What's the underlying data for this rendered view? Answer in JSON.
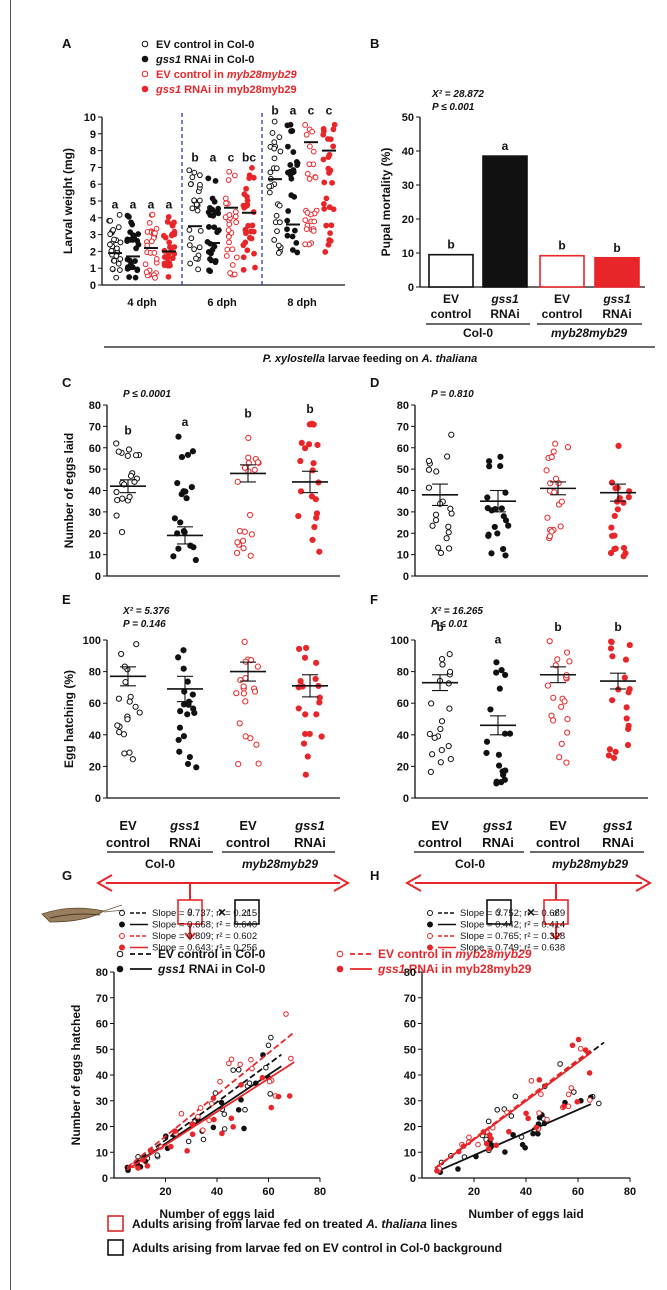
{
  "figure": {
    "panel_labels": [
      "A",
      "B",
      "C",
      "D",
      "E",
      "F",
      "G",
      "H"
    ],
    "feeding_label_italic_1": "P. xylostella",
    "feeding_label_mid": " larvae feeding on ",
    "feeding_label_italic_2": "A. thaliana",
    "genotype_col0": "Col-0",
    "genotype_myb": "myb28myb29",
    "tick_ev_1": "EV",
    "tick_ev_2": "control",
    "tick_gss_1": "gss1",
    "tick_gss_2": "RNAi",
    "cross_symbol": "×",
    "female_symbol": "♀",
    "male_symbol": "♂",
    "legend_A": [
      {
        "pre": "EV control in Col-0",
        "ital": "",
        "post": ""
      },
      {
        "pre": "",
        "ital": "gss1",
        "post": " RNAi in Col-0"
      },
      {
        "pre": "EV control in ",
        "ital": "myb28myb29",
        "post": ""
      },
      {
        "pre": "",
        "ital": "gss1",
        "post": " RNAi in myb28myb29"
      }
    ],
    "legend_G": [
      {
        "pre": "EV control in Col-0",
        "ital": "",
        "post": ""
      },
      {
        "pre": "",
        "ital": "gss1",
        "post": " RNAi in Col-0"
      },
      {
        "pre": "EV control in ",
        "ital": "myb28myb29",
        "post": ""
      },
      {
        "pre": "",
        "ital": "gss1",
        "post": " RNAi in myb28myb29"
      }
    ],
    "bottom_legend": [
      {
        "pre": "Adults arising from larvae fed on treated ",
        "ital": "A. thaliana",
        "post": " lines",
        "color": "#d42a2a"
      },
      {
        "pre": "Adults arising from larvae fed on EV control in Col-0 background",
        "ital": "",
        "post": "",
        "color": "#111111"
      }
    ],
    "colors": {
      "black": "#111111",
      "red": "#e8262a",
      "blue": "#2a3fa0"
    }
  },
  "chart_data": [
    {
      "panel": "A",
      "type": "scatter",
      "ylabel": "Larval weight (mg)",
      "ylim": [
        0,
        10
      ],
      "yticks": [
        "0",
        "1",
        "2",
        "3",
        "4",
        "5",
        "6",
        "7",
        "8",
        "9",
        "10"
      ],
      "categories": [
        "4 dph",
        "6 dph",
        "8 dph"
      ],
      "means": [
        [
          1.9,
          1.7,
          2.2,
          2.0
        ],
        [
          3.5,
          2.5,
          4.6,
          4.3
        ],
        [
          6.3,
          3.6,
          8.5,
          8.0
        ]
      ],
      "letters": [
        [
          "a",
          "a",
          "a",
          "a"
        ],
        [
          "b",
          "a",
          "c",
          "bc"
        ],
        [
          "b",
          "a",
          "c",
          "c"
        ]
      ],
      "spread": [
        [
          0.4,
          4.2
        ],
        [
          0.6,
          7.0
        ],
        [
          1.9,
          9.8
        ]
      ]
    },
    {
      "panel": "B",
      "type": "bar",
      "ylabel": "Pupal mortality (%)",
      "ylim": [
        0,
        50
      ],
      "yticks": [
        "0",
        "10",
        "20",
        "30",
        "40",
        "50"
      ],
      "values": [
        9.5,
        38.5,
        9.2,
        8.6
      ],
      "letters": [
        "b",
        "a",
        "b",
        "b"
      ],
      "stat_line_1": "X² = 28.872",
      "stat_line_2": "P ≤ 0.001"
    },
    {
      "panel": "C",
      "type": "scatter",
      "ylabel": "Number of eggs laid",
      "ylim": [
        0,
        80
      ],
      "yticks": [
        "0",
        "10",
        "20",
        "30",
        "40",
        "50",
        "60",
        "70",
        "80"
      ],
      "means": [
        42,
        19,
        48,
        44
      ],
      "sem": [
        3,
        4,
        4,
        5
      ],
      "letters": [
        "b",
        "a",
        "b",
        "b"
      ],
      "spread": [
        [
          18,
          62
        ],
        [
          5,
          66
        ],
        [
          9,
          70
        ],
        [
          10,
          72
        ]
      ],
      "stat_line_1": "P ≤ 0.0001"
    },
    {
      "panel": "D",
      "type": "scatter",
      "ylim": [
        0,
        80
      ],
      "yticks": [
        "0",
        "10",
        "20",
        "30",
        "40",
        "50",
        "60",
        "70",
        "80"
      ],
      "means": [
        38,
        35,
        41,
        39
      ],
      "sem": [
        5,
        5,
        3,
        4
      ],
      "spread": [
        [
          6,
          70
        ],
        [
          6,
          63
        ],
        [
          15,
          62
        ],
        [
          7,
          66
        ]
      ],
      "stat_line_1": "P = 0.810"
    },
    {
      "panel": "E",
      "type": "scatter",
      "ylabel": "Egg hatching (%)",
      "ylim": [
        0,
        100
      ],
      "yticks": [
        "0",
        "20",
        "40",
        "60",
        "80",
        "100"
      ],
      "means": [
        77,
        69,
        80,
        71
      ],
      "sem": [
        6,
        8,
        6,
        7
      ],
      "spread": [
        [
          24,
          100
        ],
        [
          16,
          100
        ],
        [
          20,
          100
        ],
        [
          13,
          100
        ]
      ],
      "stat_line_1": "X² = 5.376",
      "stat_line_2": "P = 0.146"
    },
    {
      "panel": "F",
      "type": "scatter",
      "ylim": [
        0,
        100
      ],
      "yticks": [
        "0",
        "20",
        "40",
        "60",
        "80",
        "100"
      ],
      "means": [
        73,
        46,
        78,
        74
      ],
      "sem": [
        5,
        6,
        5,
        5
      ],
      "letters": [
        "b",
        "a",
        "b",
        "b"
      ],
      "spread": [
        [
          16,
          100
        ],
        [
          6,
          92
        ],
        [
          20,
          100
        ],
        [
          20,
          100
        ]
      ],
      "stat_line_1": "X² = 16.265",
      "stat_line_2": "P ≤ 0.01"
    },
    {
      "panel": "G",
      "type": "scatter",
      "xlabel": "Number of eggs laid",
      "ylabel": "Number of eggs hatched",
      "xlim": [
        0,
        80
      ],
      "ylim": [
        0,
        80
      ],
      "xticks": [
        "20",
        "40",
        "60",
        "80"
      ],
      "yticks": [
        "0",
        "10",
        "20",
        "30",
        "40",
        "50",
        "60",
        "70",
        "80"
      ],
      "series": [
        {
          "name": "Slope = 0.737; r² = 0.215",
          "slope": 0.737,
          "color": "#111111",
          "dash": true,
          "x_range": [
            5,
            65
          ]
        },
        {
          "name": "Slope = 0.668; r² = 0.640",
          "slope": 0.668,
          "color": "#111111",
          "dash": false,
          "x_range": [
            5,
            65
          ]
        },
        {
          "name": "Slope = 0.809; r² = 0.602",
          "slope": 0.809,
          "color": "#e8262a",
          "dash": true,
          "x_range": [
            5,
            70
          ]
        },
        {
          "name": "Slope = 0.643; r² = 0.256",
          "slope": 0.643,
          "color": "#e8262a",
          "dash": false,
          "x_range": [
            5,
            70
          ]
        }
      ]
    },
    {
      "panel": "H",
      "type": "scatter",
      "xlabel": "Number of eggs laid",
      "xlim": [
        0,
        80
      ],
      "ylim": [
        0,
        80
      ],
      "xticks": [
        "20",
        "40",
        "60",
        "80"
      ],
      "yticks": [
        "0",
        "10",
        "20",
        "30",
        "40",
        "50",
        "60",
        "70",
        "80"
      ],
      "series": [
        {
          "name": "Slope = 0.752; r² = 0.689",
          "slope": 0.752,
          "color": "#111111",
          "dash": true,
          "x_range": [
            5,
            70
          ]
        },
        {
          "name": "Slope = 0.442; r² = 0.414",
          "slope": 0.442,
          "color": "#111111",
          "dash": false,
          "x_range": [
            5,
            65
          ]
        },
        {
          "name": "Slope = 0.765; r² = 0.328",
          "slope": 0.765,
          "color": "#e8262a",
          "dash": true,
          "x_range": [
            5,
            65
          ]
        },
        {
          "name": "Slope = 0.749; r² = 0.638",
          "slope": 0.749,
          "color": "#e8262a",
          "dash": false,
          "x_range": [
            5,
            65
          ]
        }
      ]
    }
  ]
}
